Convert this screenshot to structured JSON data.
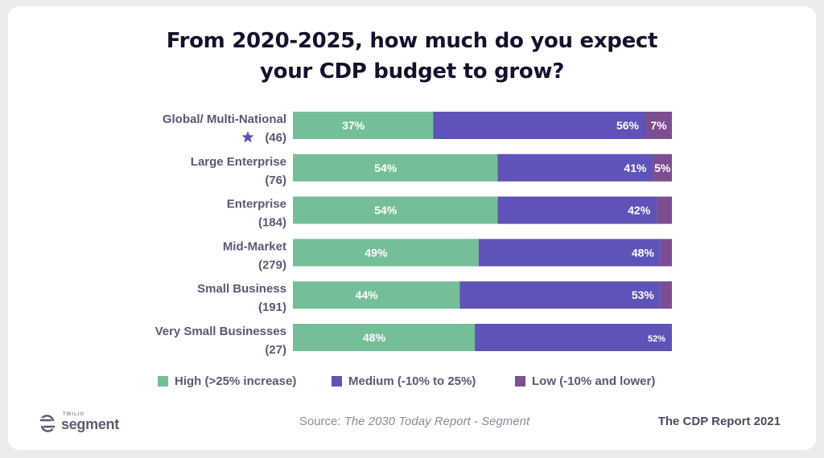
{
  "title_line1": "From 2020-2025, how much do you expect",
  "title_line2": "your CDP budget to grow?",
  "colors": {
    "high": "#75bf98",
    "medium": "#5e53b7",
    "low": "#7d4d91",
    "text": "#5a5874",
    "star": "#5e53b7"
  },
  "chart_data": {
    "type": "bar",
    "orientation": "horizontal",
    "stacked": true,
    "categories": [
      {
        "label": "Global/ Multi-National",
        "n": "(46)",
        "star": true
      },
      {
        "label": "Large Enterprise",
        "n": "(76)",
        "star": false
      },
      {
        "label": "Enterprise",
        "n": "(184)",
        "star": false
      },
      {
        "label": "Mid-Market",
        "n": "(279)",
        "star": false
      },
      {
        "label": "Small Business",
        "n": "(191)",
        "star": false
      },
      {
        "label": "Very Small Businesses",
        "n": "(27)",
        "star": false
      }
    ],
    "series": [
      {
        "name": "High (>25% increase)",
        "key": "high",
        "values": [
          37,
          54,
          54,
          49,
          44,
          48
        ],
        "labels": [
          "37%",
          "54%",
          "54%",
          "49%",
          "44%",
          "48%"
        ]
      },
      {
        "name": "Medium (-10% to 25%)",
        "key": "medium",
        "values": [
          56,
          41,
          42,
          48,
          53,
          52
        ],
        "labels": [
          "56%",
          "41%",
          "42%",
          "48%",
          "53%",
          "52%"
        ]
      },
      {
        "name": "Low (-10% and lower)",
        "key": "low",
        "values": [
          7,
          5,
          4,
          3,
          3,
          0
        ],
        "labels": [
          "7%",
          "5%",
          "",
          "",
          "",
          ""
        ]
      }
    ],
    "xlim": [
      0,
      100
    ],
    "grid": false,
    "legend_position": "bottom"
  },
  "footer": {
    "source_prefix": "Source: ",
    "source_work": "The 2030 Today Report - Segment",
    "report": "The CDP Report 2021"
  },
  "logo": {
    "small_text": "TWILIO",
    "word": "segment",
    "icon": "segment-logo-icon"
  }
}
